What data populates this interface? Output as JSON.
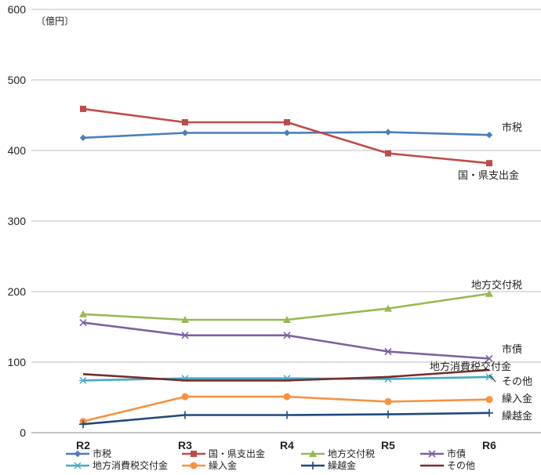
{
  "chart_data": {
    "type": "line",
    "unit_label": "〔億円〕",
    "categories": [
      "R2",
      "R3",
      "R4",
      "R5",
      "R6"
    ],
    "ylim": [
      0,
      600
    ],
    "yticks": [
      0,
      100,
      200,
      300,
      400,
      500,
      600
    ],
    "grid": true,
    "series": [
      {
        "name": "市税",
        "color": "#4a7ebb",
        "marker": "diamond",
        "values": [
          418,
          425,
          425,
          426,
          422
        ],
        "end_label": "市税"
      },
      {
        "name": "国・県支出金",
        "color": "#be4b48",
        "marker": "square",
        "values": [
          459,
          440,
          440,
          396,
          382
        ],
        "end_label": "国・県支出金"
      },
      {
        "name": "地方交付税",
        "color": "#98b954",
        "marker": "triangle",
        "values": [
          168,
          160,
          160,
          176,
          197
        ],
        "end_label": "地方交付税"
      },
      {
        "name": "市債",
        "color": "#7d60a0",
        "marker": "x",
        "values": [
          156,
          138,
          138,
          115,
          105
        ],
        "end_label": "市債"
      },
      {
        "name": "地方消費税交付金",
        "color": "#46aac5",
        "marker": "star",
        "values": [
          74,
          77,
          77,
          76,
          79
        ],
        "end_label": "地方消費税交付金"
      },
      {
        "name": "繰入金",
        "color": "#f69240",
        "marker": "circle",
        "values": [
          16,
          51,
          51,
          44,
          47
        ],
        "end_label": "繰入金"
      },
      {
        "name": "繰越金",
        "color": "#1f497d",
        "marker": "plus",
        "values": [
          12,
          25,
          25,
          26,
          28
        ],
        "end_label": "繰越金"
      },
      {
        "name": "その他",
        "color": "#772c2a",
        "marker": "none",
        "values": [
          83,
          74,
          74,
          79,
          89
        ],
        "end_label": "その他"
      }
    ],
    "legend_position": "bottom"
  }
}
